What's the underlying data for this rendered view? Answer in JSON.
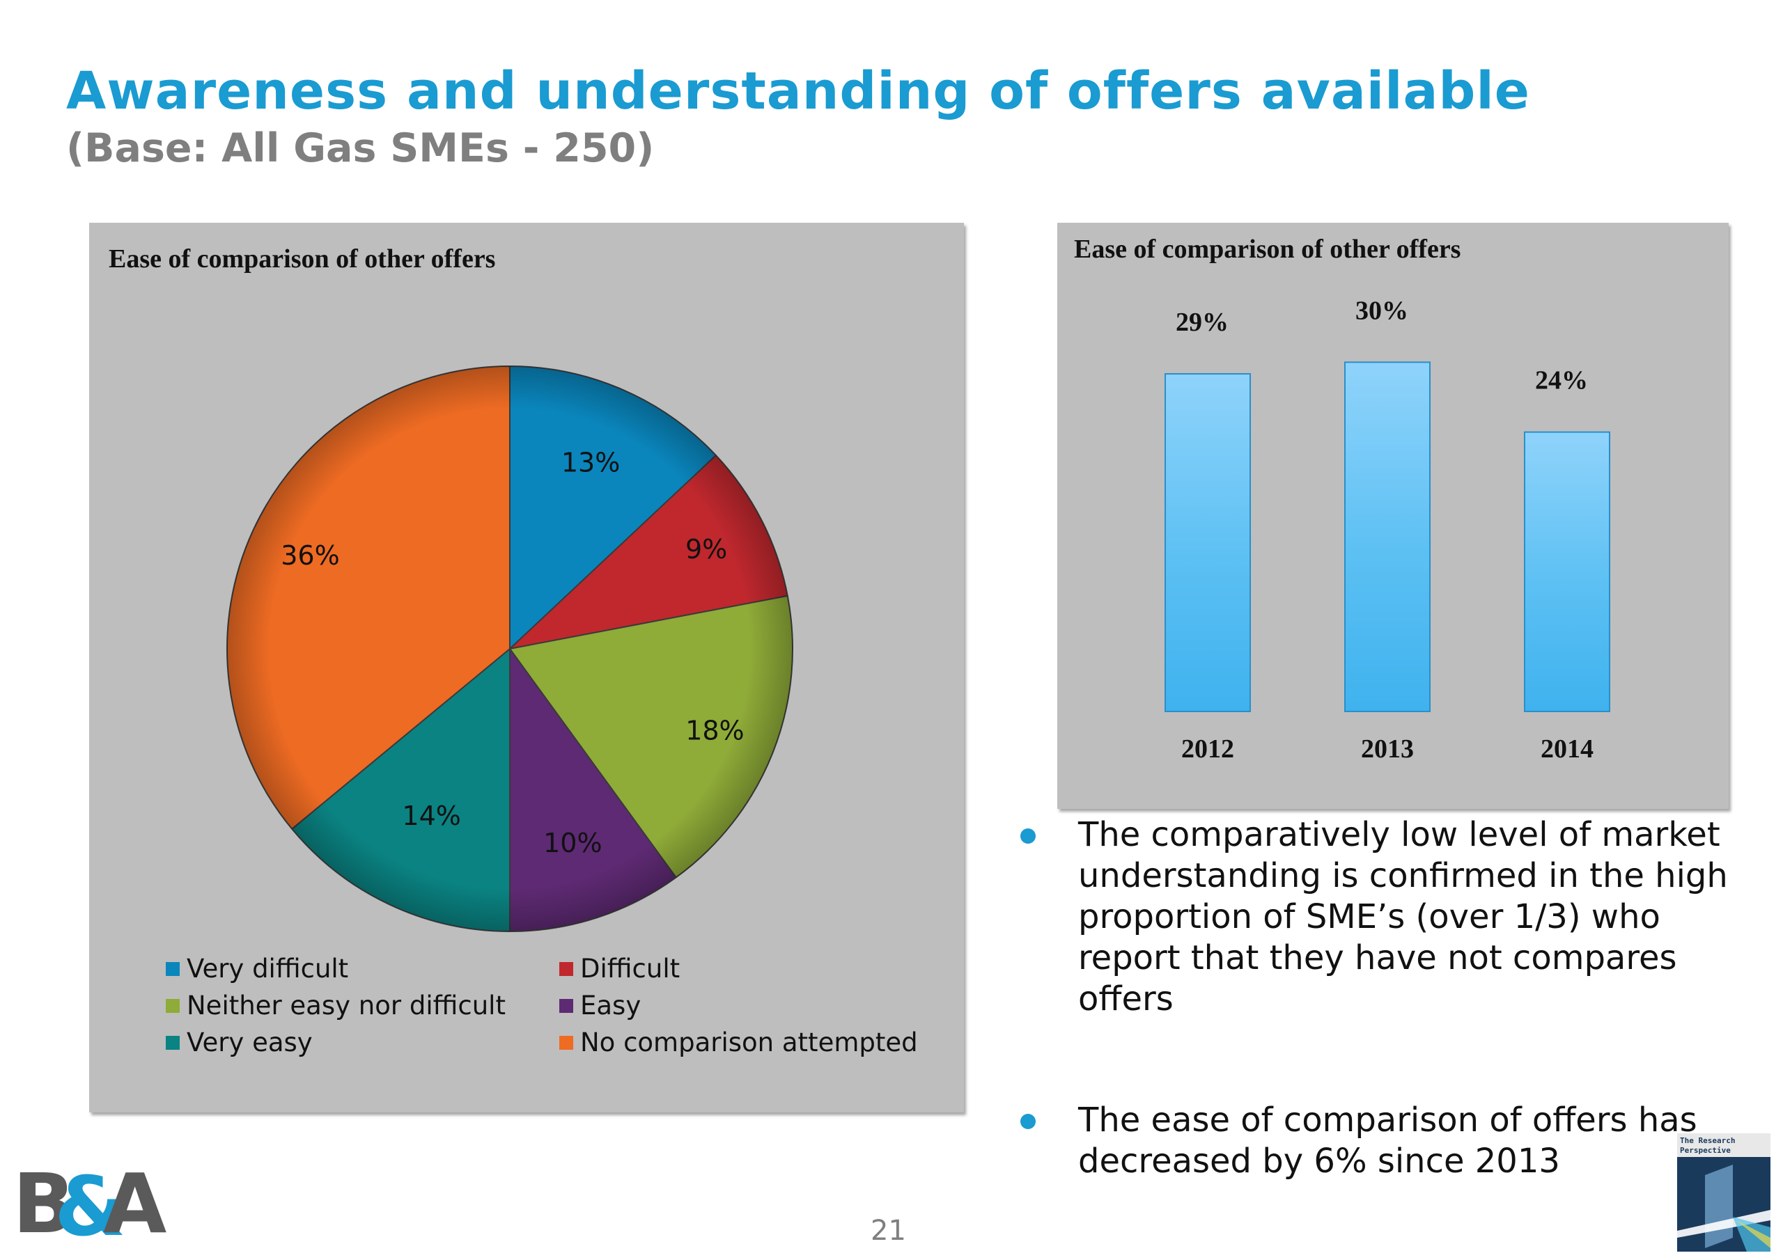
{
  "slide": {
    "title": "Awareness and understanding of offers available",
    "subtitle": "(Base: All Gas SMEs - 250)",
    "page_number": "21",
    "bullets": [
      "The comparatively low level of market understanding is confirmed in the high proportion of SME’s (over 1/3) who report that they have not compares offers",
      "The ease of comparison of offers has decreased by 6% since 2013"
    ],
    "logo_left_text": "B&A",
    "logo_right_text": "The Research Perspective",
    "accent_color": "#1a9bd1"
  },
  "chart_data": [
    {
      "type": "pie",
      "title": "Ease of comparison of other offers",
      "slices": [
        {
          "label": "Very difficult",
          "value": 13,
          "display": "13%",
          "color": "#0a86bd"
        },
        {
          "label": "Difficult",
          "value": 9,
          "display": "9%",
          "color": "#c0282e"
        },
        {
          "label": "Neither easy nor difficult",
          "value": 18,
          "display": "18%",
          "color": "#8fab38"
        },
        {
          "label": "Easy",
          "value": 10,
          "display": "10%",
          "color": "#5e2a73"
        },
        {
          "label": "Very easy",
          "value": 14,
          "display": "14%",
          "color": "#0a8382"
        },
        {
          "label": "No comparison attempted",
          "value": 36,
          "display": "36%",
          "color": "#ee6b23"
        }
      ],
      "legend_position": "bottom"
    },
    {
      "type": "bar",
      "title": "Ease of comparison of other offers",
      "categories": [
        "2012",
        "2013",
        "2014"
      ],
      "values": [
        29,
        30,
        24
      ],
      "labels": [
        "29%",
        "30%",
        "24%"
      ],
      "ylim": [
        0,
        36
      ],
      "bar_color": "#3fb2ee",
      "grid": false
    }
  ]
}
